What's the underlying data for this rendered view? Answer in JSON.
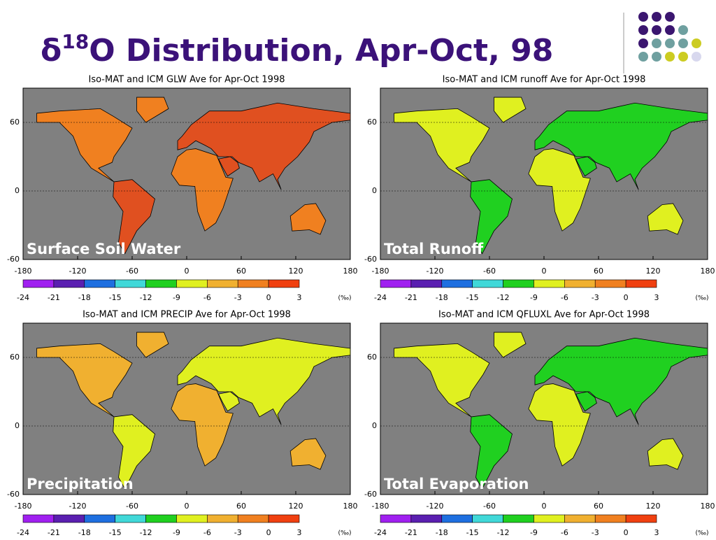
{
  "header": {
    "title_prefix": "δ",
    "title_superscript": "18",
    "title_rest": "O Distribution, Apr-Oct, 98"
  },
  "panels": [
    {
      "title": "Iso-MAT and ICM GLW Ave for Apr-Oct 1998",
      "label": "Surface Soil Water"
    },
    {
      "title": "Iso-MAT and ICM runoff Ave for Apr-Oct 1998",
      "label": "Total Runoff"
    },
    {
      "title": "Iso-MAT and ICM PRECIP Ave for Apr-Oct 1998",
      "label": "Precipitation"
    },
    {
      "title": "Iso-MAT and ICM QFLUXL Ave for Apr-Oct 1998",
      "label": "Total Evaporation"
    }
  ],
  "lonlim": [
    -180,
    180
  ],
  "latlim": [
    -60,
    90
  ],
  "lon_ticks": [
    -180,
    -120,
    -60,
    0,
    60,
    120,
    180
  ],
  "lat_ticks": [
    60,
    0,
    -60
  ],
  "colorbar": {
    "ticks": [
      -24,
      -21,
      -18,
      -15,
      -12,
      -9,
      -6,
      -3,
      0,
      3
    ],
    "colors": [
      "#a020f0",
      "#5a1fb0",
      "#1e6fe0",
      "#40d8d8",
      "#20d020",
      "#e0f020",
      "#f0b030",
      "#f08020",
      "#f04010"
    ],
    "unit": "(‰)"
  }
}
